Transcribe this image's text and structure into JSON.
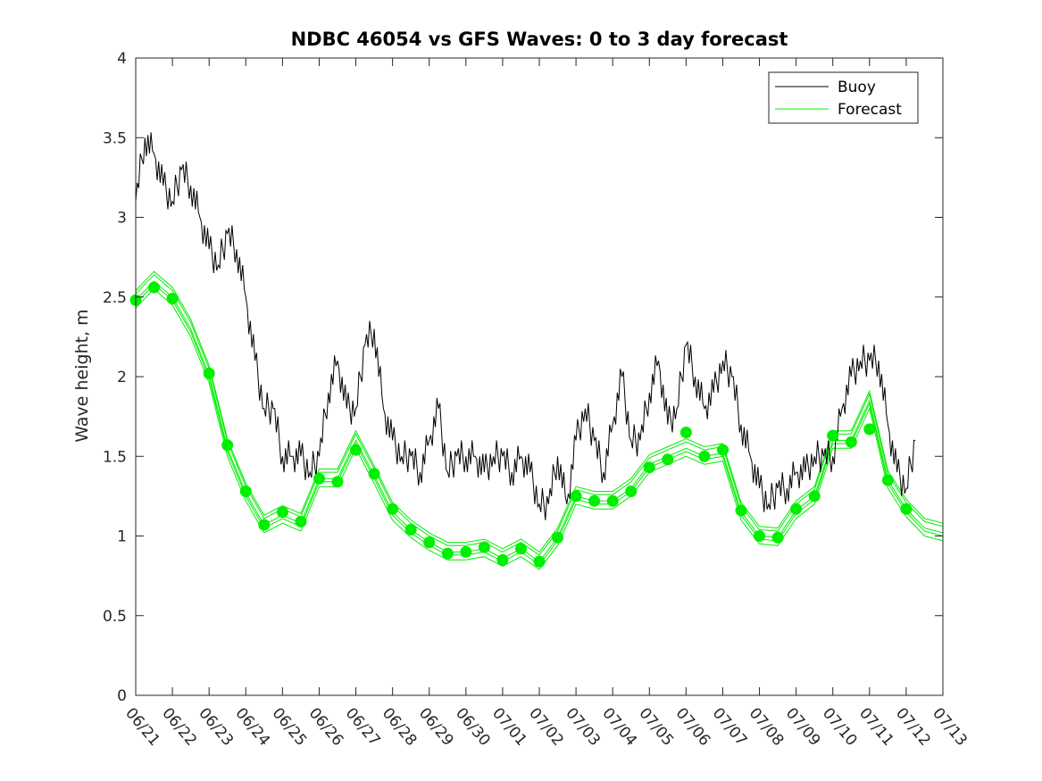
{
  "chart_data": {
    "type": "line",
    "title": "NDBC 46054 vs GFS Waves: 0 to 3 day forecast",
    "xlabel": "",
    "ylabel": "Wave height, m",
    "ylim": [
      0,
      4
    ],
    "yticks": [
      "0",
      "0.5",
      "1",
      "1.5",
      "2",
      "2.5",
      "3",
      "3.5",
      "4"
    ],
    "x_axis_type": "date",
    "xlim": [
      "2023-06-21",
      "2023-07-13"
    ],
    "xticks": [
      "06/21",
      "06/22",
      "06/23",
      "06/24",
      "06/25",
      "06/26",
      "06/27",
      "06/28",
      "06/29",
      "06/30",
      "07/01",
      "07/02",
      "07/03",
      "07/04",
      "07/05",
      "07/06",
      "07/07",
      "07/08",
      "07/09",
      "07/10",
      "07/11",
      "07/12",
      "07/13"
    ],
    "legend": {
      "placement": "top-right",
      "entries": [
        "Buoy",
        "Forecast"
      ]
    },
    "grid": false,
    "colors": {
      "buoy": "#000000",
      "forecast": "#00ee00"
    },
    "series": [
      {
        "name": "Buoy",
        "style": "line",
        "x": [
          "2023-06-21 00:00",
          "2023-06-21 06:00",
          "2023-06-21 12:00",
          "2023-06-21 18:00",
          "2023-06-22 00:00",
          "2023-06-22 06:00",
          "2023-06-22 12:00",
          "2023-06-22 18:00",
          "2023-06-23 00:00",
          "2023-06-23 06:00",
          "2023-06-23 12:00",
          "2023-06-23 18:00",
          "2023-06-24 00:00",
          "2023-06-24 06:00",
          "2023-06-24 12:00",
          "2023-06-24 18:00",
          "2023-06-25 00:00",
          "2023-06-25 06:00",
          "2023-06-25 12:00",
          "2023-06-25 18:00",
          "2023-06-26 00:00",
          "2023-06-26 06:00",
          "2023-06-26 12:00",
          "2023-06-26 18:00",
          "2023-06-27 00:00",
          "2023-06-27 06:00",
          "2023-06-27 12:00",
          "2023-06-27 18:00",
          "2023-06-28 00:00",
          "2023-06-28 06:00",
          "2023-06-28 12:00",
          "2023-06-28 18:00",
          "2023-06-29 00:00",
          "2023-06-29 06:00",
          "2023-06-29 12:00",
          "2023-06-29 18:00",
          "2023-06-30 00:00",
          "2023-06-30 06:00",
          "2023-06-30 12:00",
          "2023-06-30 18:00",
          "2023-07-01 00:00",
          "2023-07-01 06:00",
          "2023-07-01 12:00",
          "2023-07-01 18:00",
          "2023-07-02 00:00",
          "2023-07-02 06:00",
          "2023-07-02 12:00",
          "2023-07-02 18:00",
          "2023-07-03 00:00",
          "2023-07-03 06:00",
          "2023-07-03 12:00",
          "2023-07-03 18:00",
          "2023-07-04 00:00",
          "2023-07-04 06:00",
          "2023-07-04 12:00",
          "2023-07-04 18:00",
          "2023-07-05 00:00",
          "2023-07-05 06:00",
          "2023-07-05 12:00",
          "2023-07-05 18:00",
          "2023-07-06 00:00",
          "2023-07-06 06:00",
          "2023-07-06 12:00",
          "2023-07-06 18:00",
          "2023-07-07 00:00",
          "2023-07-07 06:00",
          "2023-07-07 12:00",
          "2023-07-07 18:00",
          "2023-07-08 00:00",
          "2023-07-08 06:00",
          "2023-07-08 12:00",
          "2023-07-08 18:00",
          "2023-07-09 00:00",
          "2023-07-09 06:00",
          "2023-07-09 12:00",
          "2023-07-09 18:00",
          "2023-07-10 00:00",
          "2023-07-10 06:00",
          "2023-07-10 12:00",
          "2023-07-10 18:00",
          "2023-07-11 00:00",
          "2023-07-11 06:00",
          "2023-07-11 12:00",
          "2023-07-11 18:00",
          "2023-07-12 00:00",
          "2023-07-12 06:00"
        ],
        "y": [
          3.1,
          3.5,
          3.4,
          3.2,
          3.1,
          3.3,
          3.2,
          3.0,
          2.8,
          2.7,
          2.9,
          2.8,
          2.5,
          2.1,
          1.8,
          1.8,
          1.5,
          1.5,
          1.5,
          1.4,
          1.5,
          1.9,
          2.1,
          1.8,
          1.8,
          2.2,
          2.3,
          1.8,
          1.6,
          1.5,
          1.5,
          1.4,
          1.6,
          1.8,
          1.4,
          1.5,
          1.5,
          1.5,
          1.4,
          1.5,
          1.5,
          1.4,
          1.5,
          1.4,
          1.2,
          1.2,
          1.5,
          1.2,
          1.6,
          1.8,
          1.6,
          1.4,
          1.7,
          2.0,
          1.6,
          1.6,
          1.9,
          2.1,
          1.7,
          1.8,
          2.2,
          2.0,
          1.8,
          1.9,
          2.1,
          2.0,
          1.7,
          1.5,
          1.3,
          1.2,
          1.3,
          1.3,
          1.4,
          1.4,
          1.5,
          1.5,
          1.5,
          1.8,
          2.0,
          2.1,
          2.1,
          2.1,
          1.7,
          1.4,
          1.3,
          1.6
        ]
      },
      {
        "name": "Forecast",
        "style": "line",
        "x": [
          "2023-06-21 00:00",
          "2023-06-21 12:00",
          "2023-06-22 00:00",
          "2023-06-22 12:00",
          "2023-06-23 00:00",
          "2023-06-23 12:00",
          "2023-06-24 00:00",
          "2023-06-24 12:00",
          "2023-06-25 00:00",
          "2023-06-25 12:00",
          "2023-06-26 00:00",
          "2023-06-26 12:00",
          "2023-06-27 00:00",
          "2023-06-27 12:00",
          "2023-06-28 00:00",
          "2023-06-28 12:00",
          "2023-06-29 00:00",
          "2023-06-29 12:00",
          "2023-06-30 00:00",
          "2023-06-30 12:00",
          "2023-07-01 00:00",
          "2023-07-01 12:00",
          "2023-07-02 00:00",
          "2023-07-02 12:00",
          "2023-07-03 00:00",
          "2023-07-03 12:00",
          "2023-07-04 00:00",
          "2023-07-04 12:00",
          "2023-07-05 00:00",
          "2023-07-05 12:00",
          "2023-07-06 00:00",
          "2023-07-06 12:00",
          "2023-07-07 00:00",
          "2023-07-07 12:00",
          "2023-07-08 00:00",
          "2023-07-08 12:00",
          "2023-07-09 00:00",
          "2023-07-09 12:00",
          "2023-07-10 00:00",
          "2023-07-10 12:00",
          "2023-07-11 00:00",
          "2023-07-11 12:00",
          "2023-07-12 00:00",
          "2023-07-12 12:00",
          "2023-07-13 00:00"
        ],
        "y": [
          2.48,
          2.6,
          2.5,
          2.3,
          2.01,
          1.55,
          1.27,
          1.07,
          1.13,
          1.08,
          1.36,
          1.36,
          1.6,
          1.38,
          1.15,
          1.04,
          0.96,
          0.9,
          0.9,
          0.92,
          0.86,
          0.92,
          0.84,
          0.99,
          1.25,
          1.22,
          1.22,
          1.3,
          1.45,
          1.5,
          1.55,
          1.5,
          1.52,
          1.15,
          1.0,
          0.99,
          1.16,
          1.25,
          1.6,
          1.6,
          1.85,
          1.35,
          1.17,
          1.05,
          1.02
        ]
      },
      {
        "name": "Forecast",
        "style": "markers",
        "x": [
          "2023-06-21 00:00",
          "2023-06-21 12:00",
          "2023-06-22 00:00",
          "2023-06-23 00:00",
          "2023-06-23 12:00",
          "2023-06-24 00:00",
          "2023-06-24 12:00",
          "2023-06-25 00:00",
          "2023-06-25 12:00",
          "2023-06-26 00:00",
          "2023-06-26 12:00",
          "2023-06-27 00:00",
          "2023-06-27 12:00",
          "2023-06-28 00:00",
          "2023-06-28 12:00",
          "2023-06-29 00:00",
          "2023-06-29 12:00",
          "2023-06-30 00:00",
          "2023-06-30 12:00",
          "2023-07-01 00:00",
          "2023-07-01 12:00",
          "2023-07-02 00:00",
          "2023-07-02 12:00",
          "2023-07-03 00:00",
          "2023-07-03 12:00",
          "2023-07-04 00:00",
          "2023-07-04 12:00",
          "2023-07-05 00:00",
          "2023-07-05 12:00",
          "2023-07-06 00:00",
          "2023-07-06 12:00",
          "2023-07-07 00:00",
          "2023-07-07 12:00",
          "2023-07-08 00:00",
          "2023-07-08 12:00",
          "2023-07-09 00:00",
          "2023-07-09 12:00",
          "2023-07-10 00:00",
          "2023-07-10 12:00",
          "2023-07-11 00:00",
          "2023-07-11 12:00",
          "2023-07-12 00:00"
        ],
        "y": [
          2.48,
          2.56,
          2.49,
          2.02,
          1.57,
          1.28,
          1.07,
          1.15,
          1.09,
          1.36,
          1.34,
          1.54,
          1.39,
          1.17,
          1.04,
          0.96,
          0.89,
          0.9,
          0.93,
          0.85,
          0.92,
          0.84,
          0.99,
          1.25,
          1.22,
          1.22,
          1.28,
          1.43,
          1.48,
          1.65,
          1.5,
          1.54,
          1.16,
          1.0,
          0.99,
          1.17,
          1.25,
          1.63,
          1.59,
          1.67,
          1.35,
          1.17
        ]
      }
    ]
  }
}
